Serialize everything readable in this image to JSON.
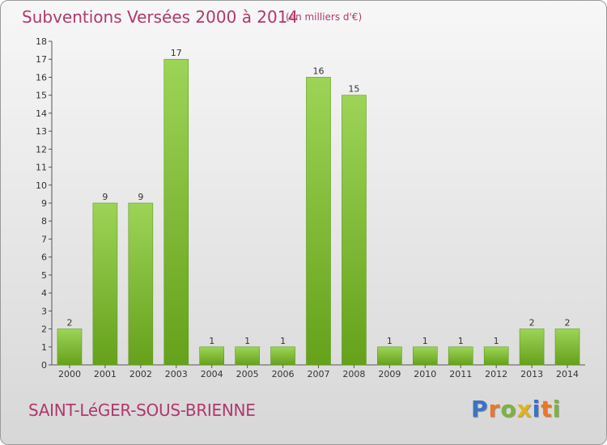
{
  "title": "Subventions Versées 2000 à 2014",
  "unit_note": "(en milliers d'€)",
  "commune": "SAINT-LéGER-SOUS-BRIENNE",
  "logo": {
    "letters": [
      "P",
      "r",
      "o",
      "x",
      "i",
      "t",
      "i"
    ],
    "colors": [
      "#3a73c4",
      "#e8782a",
      "#7cb342",
      "#e2b21a",
      "#3a73c4",
      "#e8782a",
      "#7cb342"
    ]
  },
  "colors": {
    "bar_light": "#9dd457",
    "bar_dark": "#65a11b",
    "title": "#b0386e"
  },
  "chart_data": {
    "type": "bar",
    "categories": [
      "2000",
      "2001",
      "2002",
      "2003",
      "2004",
      "2005",
      "2006",
      "2007",
      "2008",
      "2009",
      "2010",
      "2011",
      "2012",
      "2013",
      "2014"
    ],
    "values": [
      2,
      9,
      9,
      17,
      1,
      1,
      1,
      16,
      15,
      1,
      1,
      1,
      1,
      2,
      2
    ],
    "ylim": [
      0,
      18
    ],
    "yticks": [
      0,
      1,
      2,
      3,
      4,
      5,
      6,
      7,
      8,
      9,
      10,
      11,
      12,
      13,
      14,
      15,
      16,
      17,
      18
    ],
    "grid": false,
    "data_labels": true
  }
}
